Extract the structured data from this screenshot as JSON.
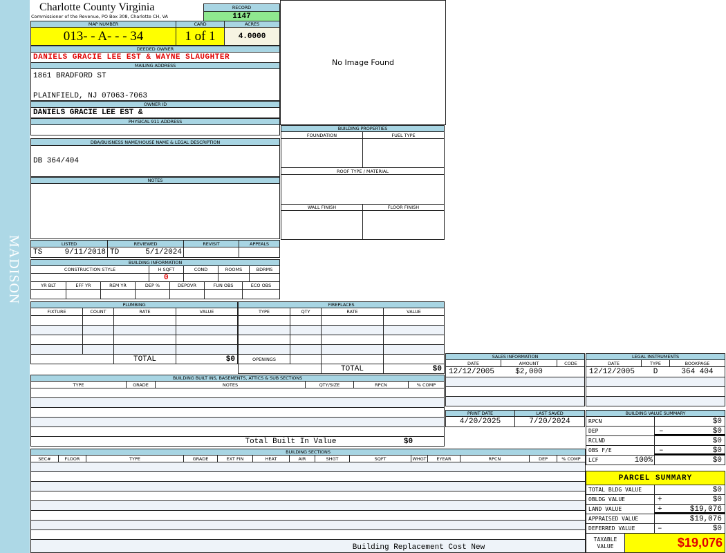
{
  "sidebar": {
    "district": "MADISON"
  },
  "header": {
    "county": "Charlotte County Virginia",
    "subtitle": "Commissioner of the Revenue, PO Box 308, Charlotte CH, VA",
    "record_label": "RECORD",
    "record": "1147"
  },
  "parcel": {
    "map_label": "MAP NUMBER",
    "map_number": "013-  - A-   -   - 34",
    "card_label": "CARD",
    "card": "1 of 1",
    "acres_label": "ACRES",
    "acres": "4.0000"
  },
  "owner": {
    "deeded_label": "DEEDED OWNER",
    "deeded": "DANIELS GRACIE LEE EST & WAYNE SLAUGHTER",
    "mailing_label": "MAILING ADDRESS",
    "mailing_line1": "1861 BRADFORD ST",
    "mailing_line2": "PLAINFIELD, NJ 07063-7063",
    "owner_id_label": "OWNER ID",
    "owner_id": "DANIELS GRACIE LEE EST &",
    "physical_label": "PHYSICAL 911 ADDRESS"
  },
  "dba": {
    "label": "DBA/BUISNESS NAME/HOUSE NAME & LEGAL DESCRIPTION",
    "value": "DB 364/404"
  },
  "notes": {
    "label": "NOTES"
  },
  "image": {
    "text": "No Image Found"
  },
  "building_properties": {
    "title": "BUILDING PROPERTIES",
    "foundation": "FOUNDATION",
    "fuel_type": "FUEL TYPE",
    "roof": "ROOF TYPE / MATERIAL",
    "wall_finish": "WALL FINISH",
    "floor_finish": "FLOOR FINISH"
  },
  "dates": {
    "listed_label": "LISTED",
    "listed_by": "TS",
    "listed": "9/11/2018",
    "reviewed_label": "REVIEWED",
    "reviewed_by": "TD",
    "reviewed": "5/1/2024",
    "revisit_label": "REVISIT",
    "appeals_label": "APPEALS"
  },
  "building_info": {
    "title": "BUILDING INFORMATION",
    "cols1": [
      "CONSTRUCTION STYLE",
      "H SQFT",
      "COND",
      "ROOMS",
      "BDRMS"
    ],
    "hsqft": "0",
    "cols2": [
      "YR BLT",
      "EFF YR",
      "REM YR",
      "DEP %",
      "DEPOVR",
      "FUN OBS",
      "ECO OBS"
    ]
  },
  "plumbing": {
    "title": "PLUMBING",
    "columns": [
      "FIXTURE",
      "COUNT",
      "RATE",
      "VALUE"
    ],
    "total_label": "TOTAL",
    "total": "$0"
  },
  "fireplaces": {
    "title": "FIREPLACES",
    "columns": [
      "TYPE",
      "QTY",
      "RATE",
      "VALUE"
    ],
    "openings_label": "OPENINGS",
    "total_label": "TOTAL",
    "total": "$0"
  },
  "built_ins": {
    "title": "BUILDING BUILT INS, BASEMENTS, ATTICS & SUB SECTIONS",
    "columns": [
      "TYPE",
      "GRADE",
      "NOTES",
      "QTY/SIZE",
      "RPCN",
      "% COMP"
    ],
    "total_label": "Total Built In Value",
    "total": "$0"
  },
  "sections": {
    "title": "BUILDING SECTIONS",
    "columns": [
      "SEC#",
      "FLOOR",
      "TYPE",
      "GRADE",
      "EXT FIN",
      "HEAT",
      "AIR",
      "SHGT",
      "SQFT",
      "WHGT",
      "EYEAR",
      "RPCN",
      "DEP",
      "% COMP"
    ],
    "footer": "Building Replacement Cost New"
  },
  "sales": {
    "title": "SALES INFORMATION",
    "columns": [
      "DATE",
      "AMOUNT",
      "CODE"
    ],
    "rows": [
      [
        "12/12/2005",
        "$2,000",
        ""
      ]
    ]
  },
  "legal": {
    "title": "LEGAL INSTRUMENTS",
    "columns": [
      "DATE",
      "TYPE",
      "BOOKPAGE"
    ],
    "rows": [
      [
        "12/12/2005",
        "D",
        "364 404"
      ]
    ]
  },
  "print": {
    "print_label": "PRINT DATE",
    "print_date": "4/20/2025",
    "saved_label": "LAST SAVED",
    "last_saved": "7/20/2024"
  },
  "bvs": {
    "title": "BUILDING VALUE SUMMARY",
    "rows": [
      {
        "label": "RPCN",
        "extra": "",
        "sign": "",
        "value": "$0"
      },
      {
        "label": "DEP",
        "extra": "",
        "sign": "–",
        "value": "$0"
      },
      {
        "label": "RCLND",
        "extra": "",
        "sign": "",
        "value": "$0"
      },
      {
        "label": "OBS F/E",
        "extra": "",
        "sign": "–",
        "value": "$0"
      },
      {
        "label": "LCF",
        "extra": "100%",
        "sign": "",
        "value": "$0"
      }
    ]
  },
  "summary": {
    "title": "PARCEL SUMMARY",
    "rows": [
      {
        "label": "TOTAL BLDG VALUE",
        "sign": "",
        "value": "$0"
      },
      {
        "label": "OBLDG VALUE",
        "sign": "+",
        "value": "$0"
      },
      {
        "label": "LAND VALUE",
        "sign": "+",
        "value": "$19,076"
      },
      {
        "label": "APPRAISED VALUE",
        "sign": "",
        "value": "$19,076"
      },
      {
        "label": "DEFERRED VALUE",
        "sign": "–",
        "value": "$0"
      }
    ],
    "taxable_label": "TAXABLE VALUE",
    "taxable": "$19,076"
  },
  "colors": {
    "header": "#a8d5e3",
    "highlight": "#ffff00",
    "record": "#8fe88f",
    "owner_text": "#e00000",
    "sidebar": "#add8e6"
  }
}
